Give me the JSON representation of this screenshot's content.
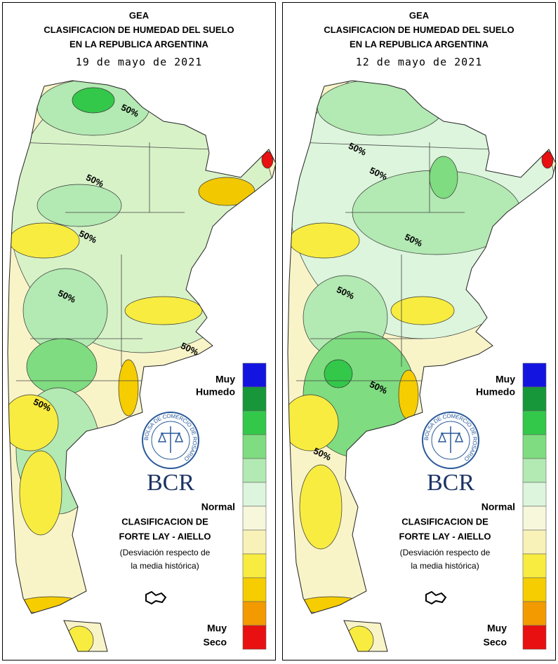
{
  "panels": [
    {
      "title_lines": [
        "GEA",
        "CLASIFICACION DE HUMEDAD DEL SUELO",
        "EN LA REPUBLICA ARGENTINA"
      ],
      "date": "19 de mayo de 2021",
      "contour_labels": [
        "50%",
        "50%",
        "50%",
        "50%",
        "50%",
        "50%"
      ],
      "legend": {
        "wet_line1": "Muy",
        "wet_line2": "Humedo",
        "normal": "Normal",
        "dry_line1": "Muy",
        "dry_line2": "Seco"
      },
      "logo": {
        "ring": "BOLSA DE COMERCIO DE ROSARIO",
        "name": "BCR"
      },
      "classification": [
        "CLASIFICACION DE",
        "FORTE LAY - AIELLO",
        "(Desviación respecto de",
        "la media histórica)"
      ]
    },
    {
      "title_lines": [
        "GEA",
        "CLASIFICACION DE HUMEDAD DEL SUELO",
        "EN LA REPUBLICA ARGENTINA"
      ],
      "date": "12 de mayo de 2021",
      "contour_labels": [
        "50%",
        "50%",
        "50%",
        "50%",
        "50%",
        "50%"
      ],
      "legend": {
        "wet_line1": "Muy",
        "wet_line2": "Humedo",
        "normal": "Normal",
        "dry_line1": "Muy",
        "dry_line2": "Seco"
      },
      "logo": {
        "ring": "BOLSA DE COMERCIO DE ROSARIO",
        "name": "BCR"
      },
      "classification": [
        "CLASIFICACION DE",
        "FORTE LAY - AIELLO",
        "(Desviación respecto de",
        "la media histórica)"
      ]
    }
  ]
}
